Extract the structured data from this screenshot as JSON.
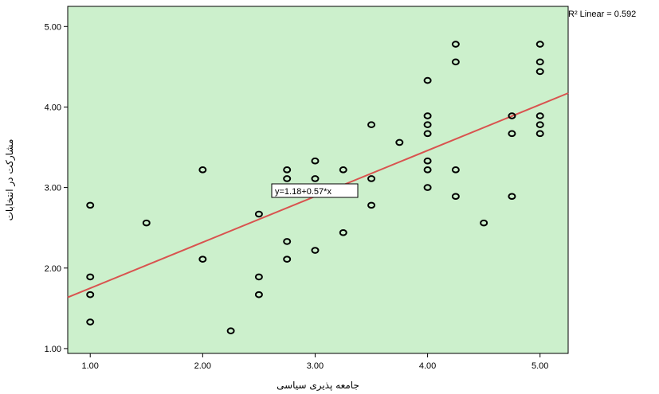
{
  "chart_data": {
    "type": "scatter",
    "title": "",
    "xlabel": "جامعه پذیری سیاسی",
    "ylabel": "مشارکت در انتخابات",
    "xlim": [
      0.8,
      5.25
    ],
    "ylim": [
      0.94,
      5.25
    ],
    "x_ticks": [
      "1.00",
      "2.00",
      "3.00",
      "4.00",
      "5.00"
    ],
    "y_ticks": [
      "1.00",
      "2.00",
      "3.00",
      "4.00",
      "5.00"
    ],
    "grid": false,
    "plot_background": "#ccf0cc",
    "marker_color": "#000000",
    "fit_line_color": "#d9534f",
    "fit_line": {
      "intercept": 1.18,
      "slope": 0.57
    },
    "equation_label": "y=1.18+0.57*x",
    "r2_label": "R² Linear = 0.592",
    "points": [
      [
        1.0,
        2.78
      ],
      [
        1.0,
        1.89
      ],
      [
        1.0,
        1.67
      ],
      [
        1.0,
        1.33
      ],
      [
        1.5,
        2.56
      ],
      [
        2.0,
        3.22
      ],
      [
        2.0,
        2.11
      ],
      [
        2.25,
        1.22
      ],
      [
        2.5,
        2.67
      ],
      [
        2.5,
        1.89
      ],
      [
        2.5,
        1.67
      ],
      [
        2.75,
        3.22
      ],
      [
        2.75,
        3.11
      ],
      [
        2.75,
        3.0
      ],
      [
        2.75,
        2.33
      ],
      [
        2.75,
        2.11
      ],
      [
        3.0,
        3.33
      ],
      [
        3.0,
        3.11
      ],
      [
        3.0,
        2.22
      ],
      [
        3.25,
        3.22
      ],
      [
        3.25,
        2.44
      ],
      [
        3.5,
        3.78
      ],
      [
        3.5,
        3.11
      ],
      [
        3.5,
        2.78
      ],
      [
        3.75,
        3.56
      ],
      [
        4.0,
        4.33
      ],
      [
        4.0,
        3.89
      ],
      [
        4.0,
        3.78
      ],
      [
        4.0,
        3.67
      ],
      [
        4.0,
        3.33
      ],
      [
        4.0,
        3.22
      ],
      [
        4.0,
        3.0
      ],
      [
        4.25,
        4.78
      ],
      [
        4.25,
        4.56
      ],
      [
        4.25,
        3.22
      ],
      [
        4.25,
        2.89
      ],
      [
        4.5,
        2.56
      ],
      [
        4.75,
        3.89
      ],
      [
        4.75,
        3.67
      ],
      [
        4.75,
        2.89
      ],
      [
        5.0,
        4.78
      ],
      [
        5.0,
        4.56
      ],
      [
        5.0,
        4.44
      ],
      [
        5.0,
        3.89
      ],
      [
        5.0,
        3.78
      ],
      [
        5.0,
        3.67
      ]
    ]
  }
}
